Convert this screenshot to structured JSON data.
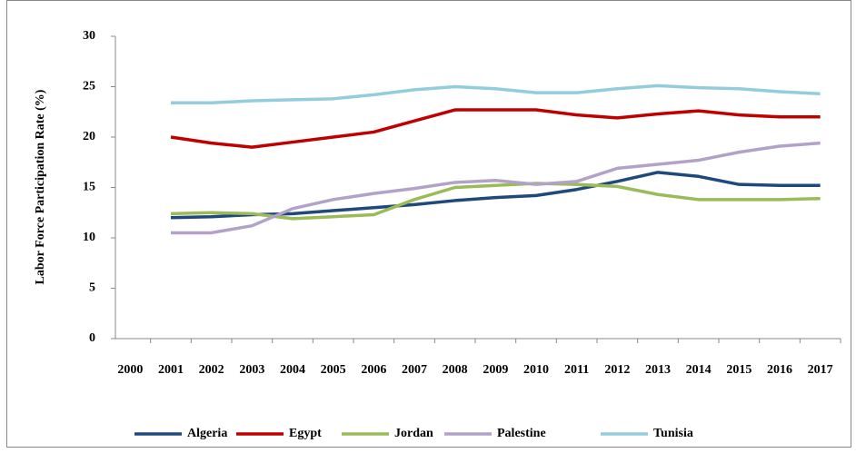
{
  "chart_data": {
    "type": "line",
    "y_label": "Labor Force Participation Rate (%)",
    "categories": [
      "2000",
      "2001",
      "2002",
      "2003",
      "2004",
      "2005",
      "2006",
      "2007",
      "2008",
      "2009",
      "2010",
      "2011",
      "2012",
      "2013",
      "2014",
      "2015",
      "2016",
      "2017"
    ],
    "series": [
      {
        "name": "Algeria",
        "color": "#1f497d",
        "values": [
          null,
          12.0,
          12.1,
          12.3,
          12.4,
          12.7,
          13.0,
          13.3,
          13.7,
          14.0,
          14.2,
          14.8,
          15.6,
          16.5,
          16.1,
          15.3,
          15.2,
          15.2
        ]
      },
      {
        "name": "Egypt",
        "color": "#c00000",
        "values": [
          null,
          20.0,
          19.4,
          19.0,
          19.5,
          20.0,
          20.5,
          21.6,
          22.7,
          22.7,
          22.7,
          22.2,
          21.9,
          22.3,
          22.6,
          22.2,
          22.0,
          22.0
        ]
      },
      {
        "name": "Jordan",
        "color": "#9bbb59",
        "values": [
          null,
          12.4,
          12.5,
          12.4,
          11.9,
          12.1,
          12.3,
          13.8,
          15.0,
          15.2,
          15.4,
          15.3,
          15.1,
          14.3,
          13.8,
          13.8,
          13.8,
          13.9
        ]
      },
      {
        "name": "Palestine",
        "color": "#b3a2c7",
        "values": [
          null,
          10.5,
          10.5,
          11.2,
          12.9,
          13.8,
          14.4,
          14.9,
          15.5,
          15.7,
          15.3,
          15.6,
          16.9,
          17.3,
          17.7,
          18.5,
          19.1,
          19.4
        ]
      },
      {
        "name": "Tunisia",
        "color": "#93cddd",
        "values": [
          null,
          23.4,
          23.4,
          23.6,
          23.7,
          23.8,
          24.2,
          24.7,
          25.0,
          24.8,
          24.4,
          24.4,
          24.8,
          25.1,
          24.9,
          24.8,
          24.5,
          24.3
        ]
      }
    ],
    "ylim": [
      0,
      30
    ],
    "yticks": [
      0,
      5,
      10,
      15,
      20,
      25,
      30
    ],
    "grid": false,
    "legend": "bottom"
  }
}
